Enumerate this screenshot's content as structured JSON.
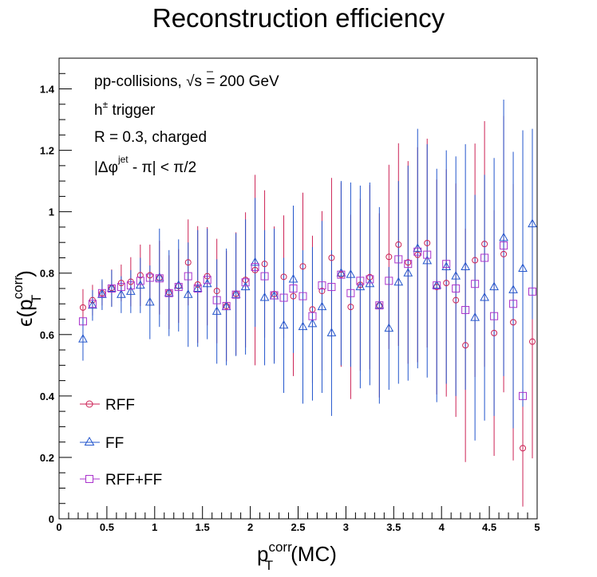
{
  "chart_data": {
    "type": "scatter",
    "title": "Reconstruction efficiency",
    "xlabel": {
      "main": "p",
      "sup": "corr",
      "sub": "T",
      "suffix": "(MC)"
    },
    "ylabel": {
      "prefix": "ϵ(p",
      "sup": "corr",
      "sub": "T",
      "suffix": ")"
    },
    "xlim": [
      0,
      5
    ],
    "ylim": [
      0,
      1.5
    ],
    "x_ticks": [
      0,
      0.5,
      1,
      1.5,
      2,
      2.5,
      3,
      3.5,
      4,
      4.5,
      5
    ],
    "x_tick_labels": [
      "0",
      "0.5",
      "1",
      "1.5",
      "2",
      "2.5",
      "3",
      "3.5",
      "4",
      "4.5",
      "5"
    ],
    "y_ticks": [
      0,
      0.2,
      0.4,
      0.6,
      0.8,
      1,
      1.2,
      1.4
    ],
    "y_tick_labels": [
      "0",
      "0.2",
      "0.4",
      "0.6",
      "0.8",
      "1",
      "1.2",
      "1.4"
    ],
    "grid": false,
    "legend_position": "bottom-left",
    "annotations": {
      "line1_pre": "pp-collisions, ",
      "line1_sqrt": "√s",
      "line1_post": " = 200 GeV",
      "line2_main": "h",
      "line2_sup": "±",
      "line2_post": " trigger",
      "line3": "R = 0.3, charged",
      "line4_pre": "|Δφ",
      "line4_sup": "jet",
      "line4_post": " - π| < π/2"
    },
    "series": [
      {
        "name": "RFF",
        "color": "#cc2255",
        "marker": "open-circle",
        "x": [
          0.25,
          0.35,
          0.45,
          0.55,
          0.65,
          0.75,
          0.85,
          0.95,
          1.05,
          1.15,
          1.25,
          1.35,
          1.45,
          1.55,
          1.65,
          1.75,
          1.85,
          1.95,
          2.05,
          2.15,
          2.25,
          2.35,
          2.45,
          2.55,
          2.65,
          2.75,
          2.85,
          2.95,
          3.05,
          3.15,
          3.25,
          3.35,
          3.45,
          3.55,
          3.65,
          3.75,
          3.85,
          3.95,
          4.05,
          4.15,
          4.25,
          4.35,
          4.45,
          4.55,
          4.65,
          4.75,
          4.85,
          4.95
        ],
        "y": [
          0.688,
          0.712,
          0.735,
          0.752,
          0.768,
          0.772,
          0.793,
          0.793,
          0.785,
          0.738,
          0.758,
          0.835,
          0.763,
          0.79,
          0.742,
          0.693,
          0.733,
          0.778,
          0.81,
          0.83,
          0.732,
          0.788,
          0.725,
          0.822,
          0.682,
          0.742,
          0.85,
          0.795,
          0.69,
          0.762,
          0.787,
          0.695,
          0.853,
          0.893,
          0.835,
          0.86,
          0.898,
          0.755,
          0.768,
          0.712,
          0.565,
          0.842,
          0.895,
          0.605,
          0.862,
          0.64,
          0.23,
          0.577
        ],
        "err": [
          0.06,
          0.05,
          0.04,
          0.06,
          0.06,
          0.08,
          0.1,
          0.1,
          0.12,
          0.12,
          0.12,
          0.14,
          0.19,
          0.16,
          0.17,
          0.18,
          0.2,
          0.22,
          0.31,
          0.24,
          0.22,
          0.2,
          0.26,
          0.24,
          0.24,
          0.26,
          0.26,
          0.3,
          0.3,
          0.28,
          0.3,
          0.3,
          0.3,
          0.33,
          0.33,
          0.35,
          0.34,
          0.35,
          0.37,
          0.38,
          0.38,
          0.38,
          0.4,
          0.4,
          0.45,
          0.45,
          0.19,
          0.38
        ]
      },
      {
        "name": "FF",
        "color": "#2255cc",
        "marker": "open-triangle",
        "x": [
          0.25,
          0.35,
          0.45,
          0.55,
          0.65,
          0.75,
          0.85,
          0.95,
          1.05,
          1.15,
          1.25,
          1.35,
          1.45,
          1.55,
          1.65,
          1.75,
          1.85,
          1.95,
          2.05,
          2.15,
          2.25,
          2.35,
          2.45,
          2.55,
          2.65,
          2.75,
          2.85,
          2.95,
          3.05,
          3.15,
          3.25,
          3.35,
          3.45,
          3.55,
          3.65,
          3.75,
          3.85,
          3.95,
          4.05,
          4.15,
          4.25,
          4.35,
          4.45,
          4.55,
          4.65,
          4.75,
          4.85,
          4.95
        ],
        "y": [
          0.585,
          0.695,
          0.73,
          0.75,
          0.73,
          0.74,
          0.76,
          0.705,
          0.785,
          0.735,
          0.76,
          0.73,
          0.75,
          0.765,
          0.675,
          0.69,
          0.73,
          0.755,
          0.835,
          0.72,
          0.725,
          0.63,
          0.78,
          0.625,
          0.635,
          0.69,
          0.605,
          0.8,
          0.795,
          0.755,
          0.765,
          0.695,
          0.62,
          0.77,
          0.8,
          0.88,
          0.84,
          0.76,
          0.82,
          0.79,
          0.82,
          0.655,
          0.72,
          0.755,
          0.915,
          0.745,
          0.815,
          0.96
        ],
        "err": [
          0.07,
          0.05,
          0.05,
          0.06,
          0.06,
          0.07,
          0.09,
          0.12,
          0.16,
          0.14,
          0.15,
          0.17,
          0.19,
          0.18,
          0.17,
          0.19,
          0.2,
          0.22,
          0.21,
          0.22,
          0.22,
          0.22,
          0.24,
          0.25,
          0.25,
          0.28,
          0.27,
          0.3,
          0.3,
          0.33,
          0.33,
          0.32,
          0.2,
          0.33,
          0.35,
          0.39,
          0.38,
          0.38,
          0.38,
          0.39,
          0.4,
          0.4,
          0.4,
          0.42,
          0.45,
          0.45,
          0.45,
          0.31
        ]
      },
      {
        "name": "RFF+FF",
        "color": "#aa33cc",
        "marker": "open-square",
        "x": [
          0.25,
          0.35,
          0.45,
          0.55,
          0.65,
          0.75,
          0.85,
          0.95,
          1.05,
          1.15,
          1.25,
          1.35,
          1.45,
          1.55,
          1.65,
          1.75,
          1.85,
          1.95,
          2.05,
          2.15,
          2.25,
          2.35,
          2.45,
          2.55,
          2.65,
          2.75,
          2.85,
          2.95,
          3.05,
          3.15,
          3.25,
          3.35,
          3.45,
          3.55,
          3.65,
          3.75,
          3.85,
          3.95,
          4.05,
          4.15,
          4.25,
          4.35,
          4.45,
          4.55,
          4.65,
          4.75,
          4.85,
          4.95
        ],
        "y": [
          0.643,
          0.7,
          0.735,
          0.75,
          0.755,
          0.76,
          0.775,
          0.785,
          0.783,
          0.735,
          0.755,
          0.79,
          0.75,
          0.778,
          0.712,
          0.693,
          0.73,
          0.77,
          0.82,
          0.79,
          0.728,
          0.72,
          0.75,
          0.725,
          0.66,
          0.76,
          0.755,
          0.795,
          0.735,
          0.775,
          0.78,
          0.695,
          0.775,
          0.845,
          0.83,
          0.87,
          0.86,
          0.76,
          0.83,
          0.75,
          0.68,
          0.765,
          0.85,
          0.66,
          0.89,
          0.7,
          0.4,
          0.74
        ]
      }
    ]
  }
}
